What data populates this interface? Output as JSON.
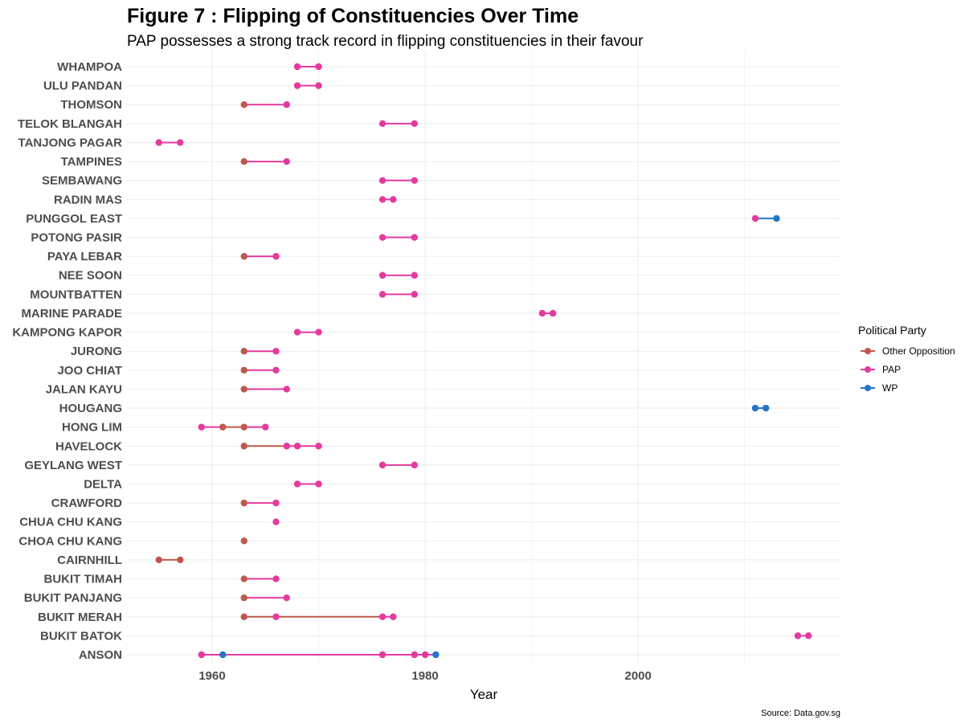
{
  "chart_data": {
    "type": "line",
    "title": "Figure 7 : Flipping of Constituencies Over Time",
    "subtitle": "PAP possesses a strong track record in flipping constituencies in their favour",
    "xlabel": "Year",
    "ylabel": "",
    "xlim": [
      1952,
      2019
    ],
    "x_ticks": [
      1960,
      1980,
      2000
    ],
    "caption": "Source: Data.gov.sg",
    "grid": true,
    "legend": {
      "title": "Political Party",
      "placement": "right",
      "entries": [
        "Other Opposition",
        "PAP",
        "WP"
      ]
    },
    "colors": {
      "Other Opposition": "#c0584a",
      "PAP": "#e6399e",
      "WP": "#2176c7"
    },
    "constituencies": [
      {
        "name": "ANSON",
        "segments": [
          {
            "x1": 1959,
            "x2": 1961,
            "party": "PAP"
          },
          {
            "x1": 1961,
            "x2": 1981,
            "party": "PAP"
          },
          {
            "x1": 1981,
            "x2": 1981,
            "party": "WP"
          }
        ],
        "points": [
          {
            "x": 1959,
            "party": "PAP"
          },
          {
            "x": 1961,
            "party": "WP"
          },
          {
            "x": 1976,
            "party": "PAP"
          },
          {
            "x": 1979,
            "party": "PAP"
          },
          {
            "x": 1980,
            "party": "PAP"
          },
          {
            "x": 1981,
            "party": "WP"
          }
        ]
      },
      {
        "name": "BUKIT BATOK",
        "segments": [
          {
            "x1": 2015,
            "x2": 2016,
            "party": "PAP"
          }
        ],
        "points": [
          {
            "x": 2015,
            "party": "PAP"
          },
          {
            "x": 2016,
            "party": "PAP"
          }
        ]
      },
      {
        "name": "BUKIT MERAH",
        "segments": [
          {
            "x1": 1963,
            "x2": 1976,
            "party": "Other Opposition"
          },
          {
            "x1": 1976,
            "x2": 1977,
            "party": "PAP"
          }
        ],
        "points": [
          {
            "x": 1963,
            "party": "Other Opposition"
          },
          {
            "x": 1966,
            "party": "PAP"
          },
          {
            "x": 1976,
            "party": "PAP"
          },
          {
            "x": 1977,
            "party": "PAP"
          }
        ]
      },
      {
        "name": "BUKIT PANJANG",
        "segments": [
          {
            "x1": 1963,
            "x2": 1967,
            "party": "PAP"
          }
        ],
        "points": [
          {
            "x": 1963,
            "party": "Other Opposition"
          },
          {
            "x": 1967,
            "party": "PAP"
          }
        ]
      },
      {
        "name": "BUKIT TIMAH",
        "segments": [
          {
            "x1": 1963,
            "x2": 1966,
            "party": "PAP"
          }
        ],
        "points": [
          {
            "x": 1963,
            "party": "Other Opposition"
          },
          {
            "x": 1966,
            "party": "PAP"
          }
        ]
      },
      {
        "name": "CAIRNHILL",
        "segments": [
          {
            "x1": 1955,
            "x2": 1957,
            "party": "Other Opposition"
          }
        ],
        "points": [
          {
            "x": 1955,
            "party": "Other Opposition"
          },
          {
            "x": 1957,
            "party": "Other Opposition"
          }
        ]
      },
      {
        "name": "CHOA CHU KANG",
        "segments": [],
        "points": [
          {
            "x": 1963,
            "party": "Other Opposition"
          }
        ]
      },
      {
        "name": "CHUA CHU KANG",
        "segments": [],
        "points": [
          {
            "x": 1966,
            "party": "PAP"
          }
        ]
      },
      {
        "name": "CRAWFORD",
        "segments": [
          {
            "x1": 1963,
            "x2": 1966,
            "party": "PAP"
          }
        ],
        "points": [
          {
            "x": 1963,
            "party": "Other Opposition"
          },
          {
            "x": 1966,
            "party": "PAP"
          }
        ]
      },
      {
        "name": "DELTA",
        "segments": [
          {
            "x1": 1968,
            "x2": 1970,
            "party": "PAP"
          }
        ],
        "points": [
          {
            "x": 1968,
            "party": "PAP"
          },
          {
            "x": 1970,
            "party": "PAP"
          }
        ]
      },
      {
        "name": "GEYLANG WEST",
        "segments": [
          {
            "x1": 1976,
            "x2": 1979,
            "party": "PAP"
          }
        ],
        "points": [
          {
            "x": 1976,
            "party": "PAP"
          },
          {
            "x": 1979,
            "party": "PAP"
          }
        ]
      },
      {
        "name": "HAVELOCK",
        "segments": [
          {
            "x1": 1963,
            "x2": 1967,
            "party": "Other Opposition"
          },
          {
            "x1": 1967,
            "x2": 1970,
            "party": "PAP"
          }
        ],
        "points": [
          {
            "x": 1963,
            "party": "Other Opposition"
          },
          {
            "x": 1967,
            "party": "PAP"
          },
          {
            "x": 1968,
            "party": "PAP"
          },
          {
            "x": 1970,
            "party": "PAP"
          }
        ]
      },
      {
        "name": "HONG LIM",
        "segments": [
          {
            "x1": 1959,
            "x2": 1961,
            "party": "PAP"
          },
          {
            "x1": 1961,
            "x2": 1963,
            "party": "Other Opposition"
          },
          {
            "x1": 1963,
            "x2": 1965,
            "party": "PAP"
          }
        ],
        "points": [
          {
            "x": 1959,
            "party": "PAP"
          },
          {
            "x": 1961,
            "party": "Other Opposition"
          },
          {
            "x": 1963,
            "party": "Other Opposition"
          },
          {
            "x": 1965,
            "party": "PAP"
          }
        ]
      },
      {
        "name": "HOUGANG",
        "segments": [
          {
            "x1": 2011,
            "x2": 2012,
            "party": "WP"
          }
        ],
        "points": [
          {
            "x": 2011,
            "party": "WP"
          },
          {
            "x": 2012,
            "party": "WP"
          }
        ]
      },
      {
        "name": "JALAN KAYU",
        "segments": [
          {
            "x1": 1963,
            "x2": 1967,
            "party": "PAP"
          }
        ],
        "points": [
          {
            "x": 1963,
            "party": "Other Opposition"
          },
          {
            "x": 1967,
            "party": "PAP"
          }
        ]
      },
      {
        "name": "JOO CHIAT",
        "segments": [
          {
            "x1": 1963,
            "x2": 1966,
            "party": "PAP"
          }
        ],
        "points": [
          {
            "x": 1963,
            "party": "Other Opposition"
          },
          {
            "x": 1966,
            "party": "PAP"
          }
        ]
      },
      {
        "name": "JURONG",
        "segments": [
          {
            "x1": 1963,
            "x2": 1966,
            "party": "PAP"
          }
        ],
        "points": [
          {
            "x": 1963,
            "party": "Other Opposition"
          },
          {
            "x": 1966,
            "party": "PAP"
          }
        ]
      },
      {
        "name": "KAMPONG KAPOR",
        "segments": [
          {
            "x1": 1968,
            "x2": 1970,
            "party": "PAP"
          }
        ],
        "points": [
          {
            "x": 1968,
            "party": "PAP"
          },
          {
            "x": 1970,
            "party": "PAP"
          }
        ]
      },
      {
        "name": "MARINE PARADE",
        "segments": [
          {
            "x1": 1991,
            "x2": 1992,
            "party": "PAP"
          }
        ],
        "points": [
          {
            "x": 1991,
            "party": "PAP"
          },
          {
            "x": 1992,
            "party": "PAP"
          }
        ]
      },
      {
        "name": "MOUNTBATTEN",
        "segments": [
          {
            "x1": 1976,
            "x2": 1979,
            "party": "PAP"
          }
        ],
        "points": [
          {
            "x": 1976,
            "party": "PAP"
          },
          {
            "x": 1979,
            "party": "PAP"
          }
        ]
      },
      {
        "name": "NEE SOON",
        "segments": [
          {
            "x1": 1976,
            "x2": 1979,
            "party": "PAP"
          }
        ],
        "points": [
          {
            "x": 1976,
            "party": "PAP"
          },
          {
            "x": 1979,
            "party": "PAP"
          }
        ]
      },
      {
        "name": "PAYA LEBAR",
        "segments": [
          {
            "x1": 1963,
            "x2": 1966,
            "party": "PAP"
          }
        ],
        "points": [
          {
            "x": 1963,
            "party": "Other Opposition"
          },
          {
            "x": 1966,
            "party": "PAP"
          }
        ]
      },
      {
        "name": "POTONG PASIR",
        "segments": [
          {
            "x1": 1976,
            "x2": 1979,
            "party": "PAP"
          }
        ],
        "points": [
          {
            "x": 1976,
            "party": "PAP"
          },
          {
            "x": 1979,
            "party": "PAP"
          }
        ]
      },
      {
        "name": "PUNGGOL EAST",
        "segments": [
          {
            "x1": 2011,
            "x2": 2013,
            "party": "WP"
          }
        ],
        "points": [
          {
            "x": 2011,
            "party": "PAP"
          },
          {
            "x": 2013,
            "party": "WP"
          }
        ]
      },
      {
        "name": "RADIN MAS",
        "segments": [
          {
            "x1": 1976,
            "x2": 1977,
            "party": "PAP"
          }
        ],
        "points": [
          {
            "x": 1976,
            "party": "PAP"
          },
          {
            "x": 1977,
            "party": "PAP"
          }
        ]
      },
      {
        "name": "SEMBAWANG",
        "segments": [
          {
            "x1": 1976,
            "x2": 1979,
            "party": "PAP"
          }
        ],
        "points": [
          {
            "x": 1976,
            "party": "PAP"
          },
          {
            "x": 1979,
            "party": "PAP"
          }
        ]
      },
      {
        "name": "TAMPINES",
        "segments": [
          {
            "x1": 1963,
            "x2": 1967,
            "party": "PAP"
          }
        ],
        "points": [
          {
            "x": 1963,
            "party": "Other Opposition"
          },
          {
            "x": 1967,
            "party": "PAP"
          }
        ]
      },
      {
        "name": "TANJONG PAGAR",
        "segments": [
          {
            "x1": 1955,
            "x2": 1957,
            "party": "PAP"
          }
        ],
        "points": [
          {
            "x": 1955,
            "party": "PAP"
          },
          {
            "x": 1957,
            "party": "PAP"
          }
        ]
      },
      {
        "name": "TELOK BLANGAH",
        "segments": [
          {
            "x1": 1976,
            "x2": 1979,
            "party": "PAP"
          }
        ],
        "points": [
          {
            "x": 1976,
            "party": "PAP"
          },
          {
            "x": 1979,
            "party": "PAP"
          }
        ]
      },
      {
        "name": "THOMSON",
        "segments": [
          {
            "x1": 1963,
            "x2": 1967,
            "party": "PAP"
          }
        ],
        "points": [
          {
            "x": 1963,
            "party": "Other Opposition"
          },
          {
            "x": 1967,
            "party": "PAP"
          }
        ]
      },
      {
        "name": "ULU PANDAN",
        "segments": [
          {
            "x1": 1968,
            "x2": 1970,
            "party": "PAP"
          }
        ],
        "points": [
          {
            "x": 1968,
            "party": "PAP"
          },
          {
            "x": 1970,
            "party": "PAP"
          }
        ]
      },
      {
        "name": "WHAMPOA",
        "segments": [
          {
            "x1": 1968,
            "x2": 1970,
            "party": "PAP"
          }
        ],
        "points": [
          {
            "x": 1968,
            "party": "PAP"
          },
          {
            "x": 1970,
            "party": "PAP"
          }
        ]
      }
    ]
  }
}
